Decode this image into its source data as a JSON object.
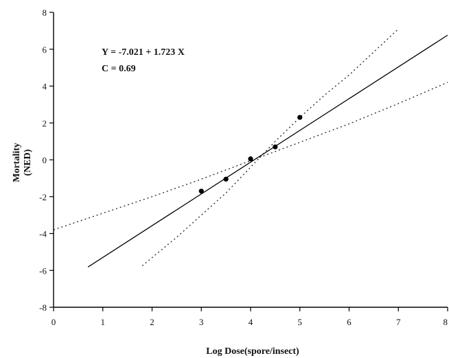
{
  "chart_data": {
    "type": "scatter",
    "xlabel": "Log Dose(spore/insect)",
    "ylabel_lines": [
      "Mortality",
      "(NED)"
    ],
    "xlim": [
      0,
      8
    ],
    "ylim": [
      -8,
      8
    ],
    "x_ticks": [
      0,
      1,
      2,
      3,
      4,
      5,
      6,
      7,
      8
    ],
    "y_ticks": [
      -8,
      -6,
      -4,
      -2,
      0,
      2,
      4,
      6,
      8
    ],
    "annotations": [
      "Y = -7.021 + 1.723 X",
      "C = 0.69"
    ],
    "points": [
      {
        "x": 3.0,
        "y": -1.7
      },
      {
        "x": 3.5,
        "y": -1.05
      },
      {
        "x": 4.0,
        "y": 0.05
      },
      {
        "x": 4.5,
        "y": 0.7
      },
      {
        "x": 5.0,
        "y": 2.3
      }
    ],
    "regression": {
      "intercept": -7.021,
      "slope": 1.723,
      "x_range": [
        0.7,
        8
      ]
    },
    "confidence_bands": [
      {
        "name": "lower",
        "x": [
          0,
          1,
          2,
          3,
          4,
          5,
          6,
          7,
          8
        ],
        "y": [
          -3.8,
          -2.9,
          -2.0,
          -1.05,
          -0.05,
          0.95,
          1.95,
          3.05,
          4.2
        ]
      },
      {
        "name": "upper",
        "x": [
          1.8,
          2.5,
          3,
          3.5,
          4,
          4.5,
          5,
          5.5,
          6,
          7
        ],
        "y": [
          -5.75,
          -4.2,
          -3.0,
          -1.8,
          -0.4,
          1.0,
          2.3,
          3.5,
          4.6,
          7.1
        ]
      }
    ],
    "grid": false,
    "legend": "none"
  }
}
